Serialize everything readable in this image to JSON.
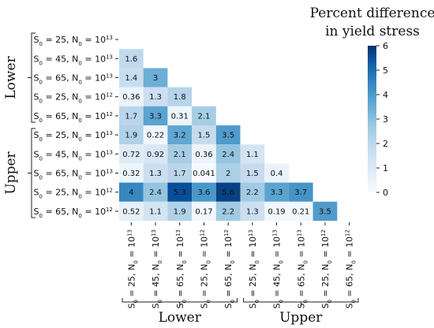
{
  "chart_data": {
    "type": "heatmap",
    "title": "",
    "colorbar_title": [
      "Percent difference",
      "in yield stress"
    ],
    "colorbar_ticks": [
      "0",
      "1",
      "2",
      "3",
      "4",
      "5",
      "6"
    ],
    "colorbar_range": [
      0,
      6
    ],
    "colors": {
      "low": "#f7fbff",
      "high": "#08306b"
    },
    "row_labels": [
      {
        "s": "25",
        "n": "13"
      },
      {
        "s": "45",
        "n": "13"
      },
      {
        "s": "65",
        "n": "13"
      },
      {
        "s": "25",
        "n": "12"
      },
      {
        "s": "65",
        "n": "12"
      },
      {
        "s": "25",
        "n": "13"
      },
      {
        "s": "45",
        "n": "13"
      },
      {
        "s": "65",
        "n": "13"
      },
      {
        "s": "25",
        "n": "12"
      },
      {
        "s": "65",
        "n": "12"
      }
    ],
    "col_labels": [
      {
        "s": "25",
        "n": "13"
      },
      {
        "s": "45",
        "n": "13"
      },
      {
        "s": "65",
        "n": "13"
      },
      {
        "s": "25",
        "n": "12"
      },
      {
        "s": "65",
        "n": "12"
      },
      {
        "s": "25",
        "n": "13"
      },
      {
        "s": "45",
        "n": "13"
      },
      {
        "s": "65",
        "n": "13"
      },
      {
        "s": "25",
        "n": "12"
      },
      {
        "s": "65",
        "n": "12"
      }
    ],
    "row_groups": [
      {
        "name": "Lower",
        "from": 0,
        "to": 4
      },
      {
        "name": "Upper",
        "from": 5,
        "to": 9
      }
    ],
    "col_groups": [
      {
        "name": "Lower",
        "from": 0,
        "to": 4
      },
      {
        "name": "Upper",
        "from": 5,
        "to": 9
      }
    ],
    "values": [
      [],
      [
        "1.6"
      ],
      [
        "1.4",
        "3"
      ],
      [
        "0.36",
        "1.3",
        "1.8"
      ],
      [
        "1.7",
        "3.3",
        "0.31",
        "2.1"
      ],
      [
        "1.9",
        "0.22",
        "3.2",
        "1.5",
        "3.5"
      ],
      [
        "0.72",
        "0.92",
        "2.1",
        "0.36",
        "2.4",
        "1.1"
      ],
      [
        "0.32",
        "1.3",
        "1.7",
        "0.041",
        "2",
        "1.5",
        "0.4"
      ],
      [
        "4",
        "2.4",
        "5.3",
        "3.6",
        "5.6",
        "2.2",
        "3.3",
        "3.7"
      ],
      [
        "0.52",
        "1.1",
        "1.9",
        "0.17",
        "2.2",
        "1.3",
        "0.19",
        "0.21",
        "3.5"
      ]
    ]
  }
}
